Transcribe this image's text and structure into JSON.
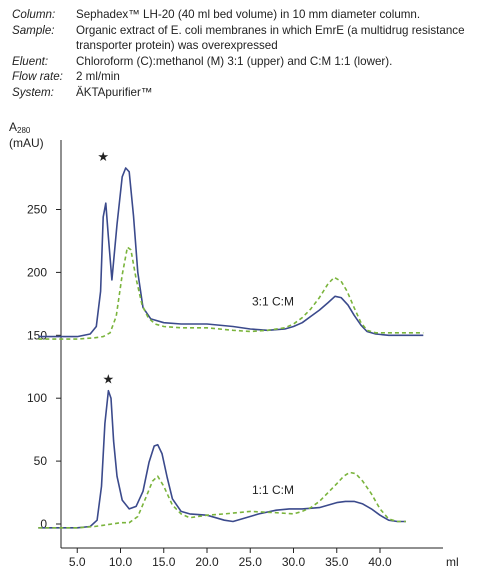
{
  "info": {
    "column_label": "Column:",
    "column_value": "Sephadex™ LH-20 (40 ml bed volume) in 10 mm diameter column.",
    "sample_label": "Sample:",
    "sample_value": "Organic extract of E. coli membranes in which EmrE (a multidrug resistance transporter protein) was overexpressed",
    "eluent_label": "Eluent:",
    "eluent_value": "Chloroform (C):methanol (M) 3:1 (upper) and C:M 1:1 (lower).",
    "flow_label": "Flow rate:",
    "flow_value": "2 ml/min",
    "system_label": "System:",
    "system_value": "ÄKTApurifier™"
  },
  "colors": {
    "solid": "#3b4a8c",
    "dashed": "#7ab43c",
    "axis": "#222222"
  },
  "chart_data": {
    "type": "line",
    "ylabel": "A280",
    "yunit": "(mAU)",
    "xlabel": "ml",
    "xlim": [
      0,
      45
    ],
    "ylim": [
      -5,
      310
    ],
    "xticks": [
      "5.0",
      "10.0",
      "15.0",
      "20.0",
      "25.0",
      "30.0",
      "35.0",
      "40.0"
    ],
    "yticks": [
      "0",
      "50",
      "100",
      "150",
      "200",
      "250"
    ],
    "peak_marker": "★",
    "panels": [
      {
        "label": "3:1 C:M",
        "marker_x": 8.0,
        "series": [
          {
            "style": "solid",
            "x": [
              0.5,
              5,
              6.5,
              7.2,
              7.7,
              8.0,
              8.3,
              8.6,
              9.0,
              9.6,
              10.2,
              10.6,
              11.0,
              11.5,
              12.0,
              12.6,
              13.5,
              15,
              17,
              20,
              23,
              25,
              27,
              29,
              30,
              31,
              32,
              33,
              34,
              34.8,
              35.5,
              36.3,
              37,
              37.8,
              38.5,
              39.5,
              41,
              43,
              45
            ],
            "y": [
              149,
              149,
              151,
              157,
              185,
              244,
              255,
              228,
              194,
              238,
              276,
              283,
              280,
              245,
              200,
              172,
              163,
              160,
              159,
              159,
              157,
              155,
              154,
              155,
              157,
              160,
              165,
              170,
              176,
              181,
              180,
              174,
              166,
              158,
              153,
              151,
              150,
              150,
              150
            ]
          },
          {
            "style": "dashed",
            "x": [
              0.5,
              5,
              7,
              8,
              8.8,
              9.5,
              10.2,
              10.8,
              11.2,
              11.8,
              12.5,
              13.2,
              14,
              15,
              17,
              20,
              23,
              25,
              27,
              29,
              30,
              31,
              32,
              33,
              34,
              34.7,
              35.5,
              36.2,
              37,
              37.8,
              38.5,
              39.5,
              41,
              43,
              45
            ],
            "y": [
              147,
              147,
              148,
              149,
              152,
              165,
              198,
              220,
              218,
              195,
              174,
              164,
              159,
              157,
              156,
              156,
              154,
              153,
              154,
              156,
              159,
              164,
              171,
              180,
              191,
              196,
              193,
              185,
              172,
              160,
              154,
              152,
              152,
              152,
              152
            ]
          }
        ]
      },
      {
        "label": "1:1 C:M",
        "marker_x": 8.6,
        "series": [
          {
            "style": "solid",
            "x": [
              0.5,
              5,
              6.5,
              7.3,
              7.8,
              8.2,
              8.6,
              8.9,
              9.2,
              9.6,
              10.2,
              11,
              11.8,
              12.6,
              13.3,
              13.9,
              14.3,
              14.8,
              15.4,
              16,
              17,
              18,
              20,
              21,
              22,
              23,
              24,
              26,
              28,
              29.5,
              31,
              33,
              34,
              35,
              36,
              37,
              38,
              39,
              40,
              41,
              42,
              43
            ],
            "y": [
              -3,
              -3,
              -2,
              3,
              30,
              80,
              106,
              100,
              66,
              38,
              19,
              12,
              14,
              26,
              49,
              62,
              63,
              56,
              37,
              20,
              10,
              8,
              7,
              5,
              3,
              2,
              4,
              8,
              11,
              12,
              12,
              13,
              15,
              17,
              18,
              18,
              16,
              12,
              7,
              3,
              2,
              2
            ]
          },
          {
            "style": "dashed",
            "x": [
              0.5,
              5,
              7,
              8,
              9,
              10,
              11,
              12,
              13,
              13.7,
              14.3,
              15,
              16,
              17,
              18,
              20,
              22,
              25,
              28,
              30,
              31,
              32,
              33,
              34,
              35,
              35.8,
              36.5,
              37.2,
              38,
              39,
              40,
              41,
              42,
              43
            ],
            "y": [
              -3,
              -3,
              -2,
              -1,
              0,
              1,
              1,
              6,
              22,
              34,
              38,
              30,
              15,
              8,
              5,
              7,
              8,
              10,
              9,
              8,
              10,
              13,
              18,
              25,
              32,
              38,
              41,
              40,
              34,
              24,
              12,
              4,
              2,
              2
            ]
          }
        ]
      }
    ]
  }
}
